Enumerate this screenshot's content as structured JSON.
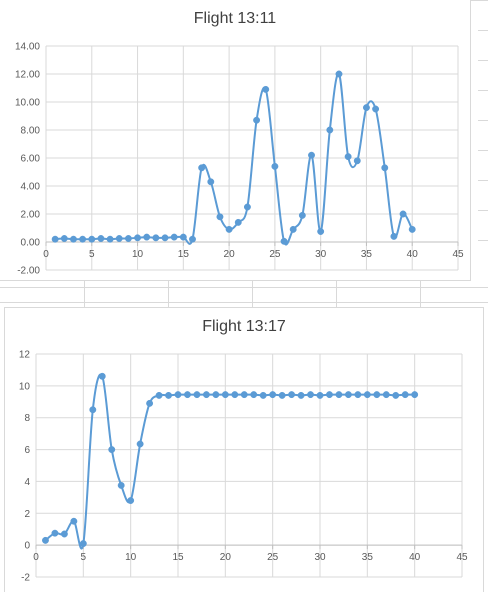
{
  "colors": {
    "series": "#5b9bd5",
    "grid": "#d9d9d9",
    "axis": "#bfbfbf",
    "text": "#595959",
    "title": "#404040"
  },
  "chart_data": [
    {
      "type": "scatter",
      "title": "Flight 13:11",
      "xlabel": "",
      "ylabel": "",
      "xlim": [
        0,
        45
      ],
      "ylim": [
        -2,
        14
      ],
      "xticks": [
        "0",
        "5",
        "10",
        "15",
        "20",
        "25",
        "30",
        "35",
        "40",
        "45"
      ],
      "yticks": [
        "-2.00",
        "0.00",
        "2.00",
        "4.00",
        "6.00",
        "8.00",
        "10.00",
        "12.00",
        "14.00"
      ],
      "grid": true,
      "legend": "none",
      "smooth": true,
      "x": [
        1,
        2,
        3,
        4,
        5,
        6,
        7,
        8,
        9,
        10,
        11,
        12,
        13,
        14,
        15,
        16,
        17,
        18,
        19,
        20,
        21,
        22,
        23,
        24,
        25,
        26,
        27,
        28,
        29,
        30,
        31,
        32,
        33,
        34,
        35,
        36,
        37,
        38,
        39,
        40
      ],
      "y": [
        0.2,
        0.25,
        0.2,
        0.2,
        0.2,
        0.25,
        0.2,
        0.25,
        0.25,
        0.3,
        0.35,
        0.3,
        0.3,
        0.35,
        0.35,
        0.2,
        5.3,
        4.3,
        1.8,
        0.9,
        1.4,
        2.5,
        8.7,
        10.9,
        5.4,
        0.05,
        0.9,
        1.9,
        6.2,
        0.75,
        8.0,
        12.0,
        6.1,
        5.8,
        9.6,
        9.5,
        5.3,
        0.4,
        2.0,
        0.9
      ]
    },
    {
      "type": "scatter",
      "title": "Flight 13:17",
      "xlabel": "",
      "ylabel": "",
      "xlim": [
        0,
        45
      ],
      "ylim": [
        -2,
        12
      ],
      "xticks": [
        "0",
        "5",
        "10",
        "15",
        "20",
        "25",
        "30",
        "35",
        "40",
        "45"
      ],
      "yticks": [
        "-2",
        "0",
        "2",
        "4",
        "6",
        "8",
        "10",
        "12"
      ],
      "grid": true,
      "legend": "none",
      "smooth": true,
      "x": [
        1,
        2,
        3,
        4,
        5,
        6,
        7,
        8,
        9,
        10,
        11,
        12,
        13,
        14,
        15,
        16,
        17,
        18,
        19,
        20,
        21,
        22,
        23,
        24,
        25,
        26,
        27,
        28,
        29,
        30,
        31,
        32,
        33,
        34,
        35,
        36,
        37,
        38,
        39,
        40
      ],
      "y": [
        0.3,
        0.75,
        0.7,
        1.5,
        0.1,
        8.5,
        10.6,
        6.0,
        3.75,
        2.8,
        6.35,
        8.9,
        9.4,
        9.4,
        9.45,
        9.45,
        9.45,
        9.45,
        9.45,
        9.45,
        9.45,
        9.45,
        9.45,
        9.4,
        9.45,
        9.4,
        9.45,
        9.4,
        9.45,
        9.4,
        9.45,
        9.45,
        9.45,
        9.45,
        9.45,
        9.45,
        9.45,
        9.4,
        9.45,
        9.45
      ]
    }
  ]
}
